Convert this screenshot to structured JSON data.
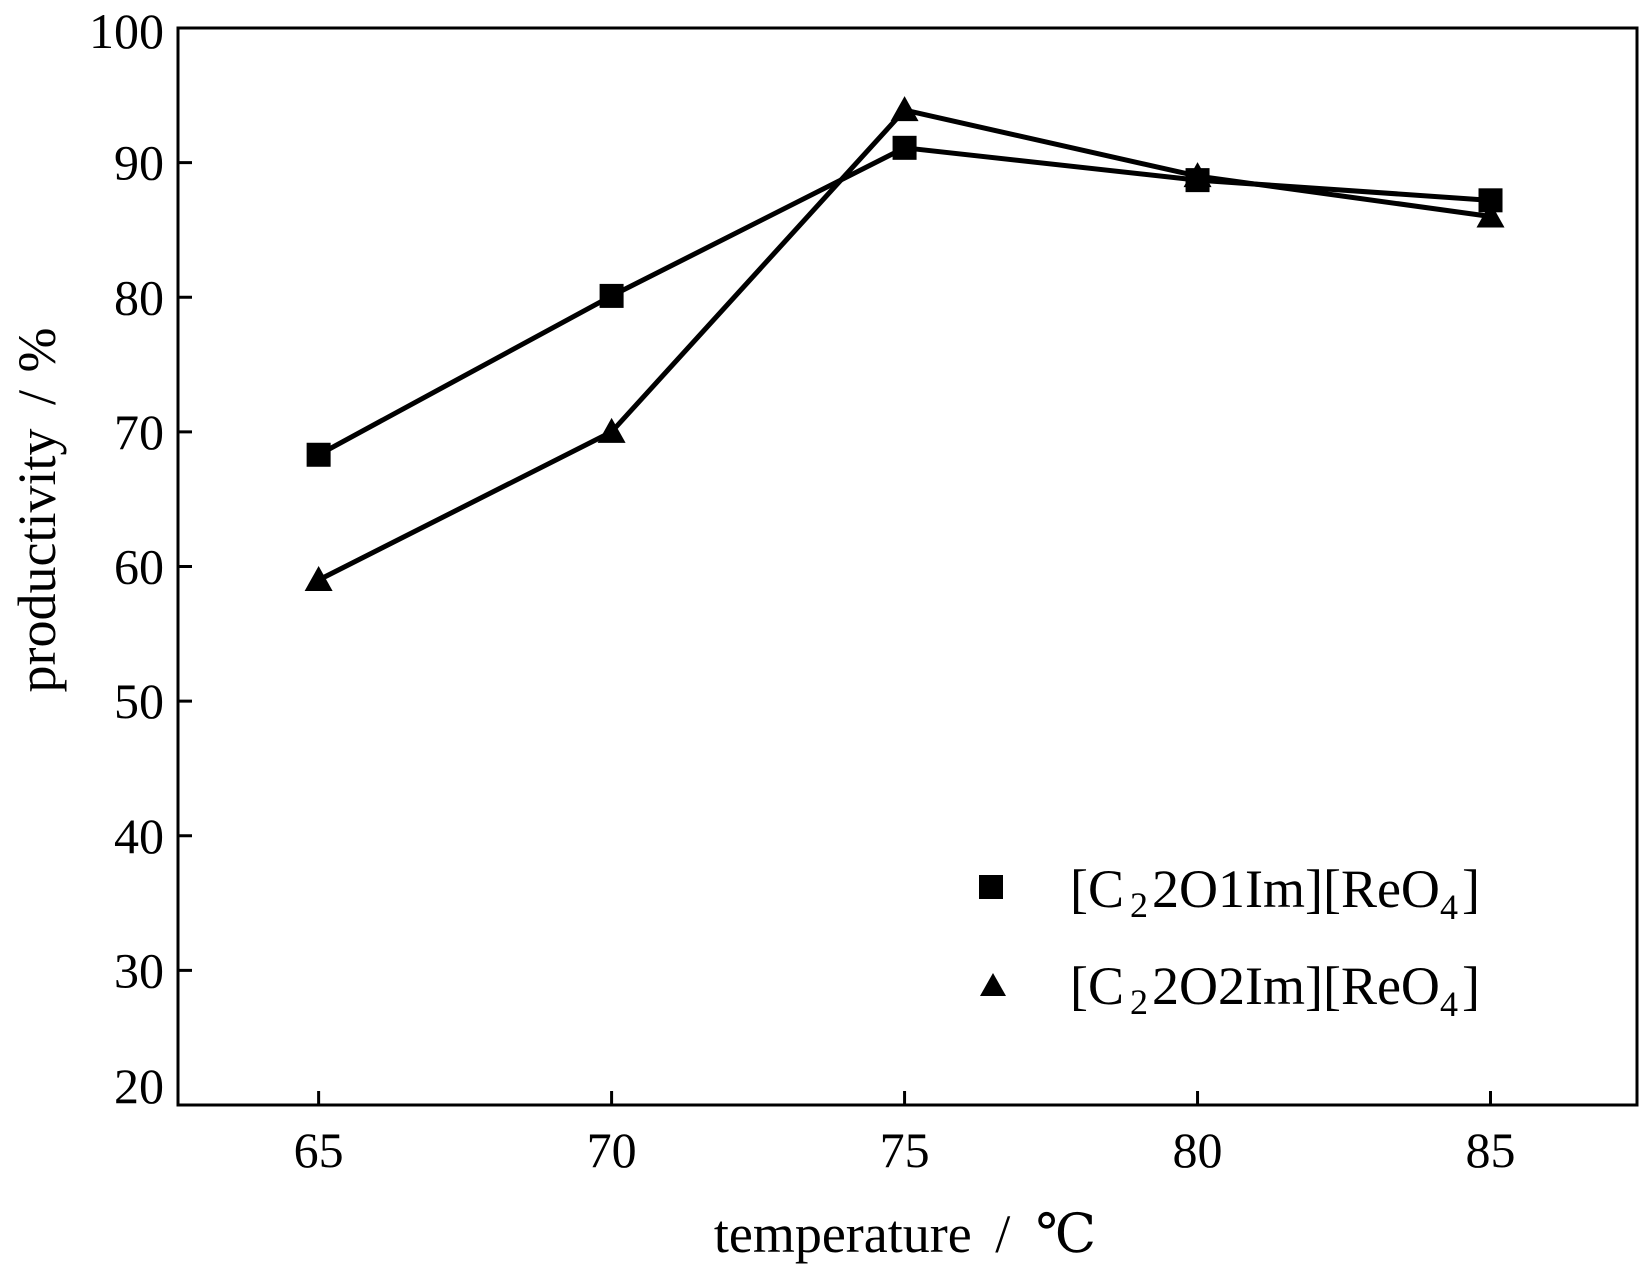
{
  "chart_data": {
    "type": "line",
    "title": "",
    "xlabel": "temperature",
    "xlabel_unit": "℃",
    "ylabel": "productivity",
    "ylabel_unit": "%",
    "label_separator": "/",
    "x": [
      65,
      70,
      75,
      80,
      85
    ],
    "xlim": [
      62.6,
      87.5
    ],
    "ylim": [
      20,
      100
    ],
    "xticks": [
      "65",
      "70",
      "75",
      "80",
      "85"
    ],
    "yticks": [
      "20",
      "30",
      "40",
      "50",
      "60",
      "70",
      "80",
      "90",
      "100"
    ],
    "grid": false,
    "legend_position": "bottom-right",
    "series": [
      {
        "name": "[C22O1Im][ReO4]",
        "marker": "square",
        "legend_parts": [
          "[C",
          "2",
          "2O1Im][ReO",
          "4",
          "]"
        ],
        "values": [
          68.3,
          80.1,
          91.1,
          88.7,
          87.2
        ]
      },
      {
        "name": "[C22O2Im][ReO4]",
        "marker": "triangle",
        "legend_parts": [
          "[C",
          "2",
          "2O2Im][ReO",
          "4",
          "]"
        ],
        "values": [
          59.0,
          70.0,
          93.9,
          89.0,
          86.0
        ]
      }
    ],
    "colors": {
      "line": "#000000",
      "marker": "#000000",
      "axis": "#000000"
    }
  }
}
